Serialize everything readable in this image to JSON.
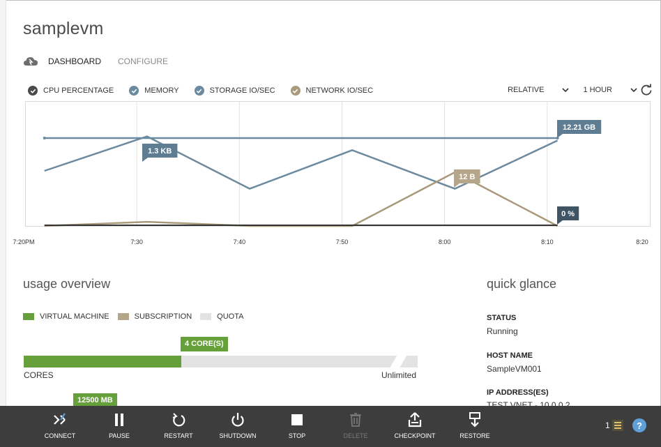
{
  "vm": {
    "name": "samplevm"
  },
  "tabs": [
    {
      "label": "DASHBOARD"
    },
    {
      "label": "CONFIGURE"
    }
  ],
  "metrics": [
    {
      "label": "CPU PERCENTAGE",
      "color": "#4a4a4a"
    },
    {
      "label": "MEMORY",
      "color": "#6b8aa0"
    },
    {
      "label": "STORAGE IO/SEC",
      "color": "#6b8aa0"
    },
    {
      "label": "NETWORK IO/SEC",
      "color": "#a89a7a"
    }
  ],
  "controls": {
    "scale": "RELATIVE",
    "range": "1 HOUR"
  },
  "chart_data": {
    "type": "line",
    "x": [
      "7:20PM",
      "7:30",
      "7:40",
      "7:50",
      "8:00",
      "8:10",
      "8:20"
    ],
    "series": [
      {
        "name": "MEMORY",
        "color": "#6b8aa0",
        "points": [
          [
            "7:21",
            12.21
          ],
          [
            "8:11",
            12.21
          ]
        ],
        "callout": "12.21 GB",
        "level": 0.88
      },
      {
        "name": "STORAGE IO/SEC",
        "color": "#6b8aa0",
        "points": [
          [
            "7:21",
            0.4
          ],
          [
            "7:31",
            0.65
          ],
          [
            "7:41",
            0.27
          ],
          [
            "7:51",
            0.55
          ],
          [
            "8:01",
            0.27
          ],
          [
            "8:11",
            0.62
          ]
        ],
        "callout": "1.3 KB"
      },
      {
        "name": "NETWORK IO/SEC",
        "color": "#a89a7a",
        "points": [
          [
            "7:21",
            0.0
          ],
          [
            "7:31",
            0.03
          ],
          [
            "7:41",
            0.0
          ],
          [
            "7:51",
            0.0
          ],
          [
            "8:01",
            0.39
          ],
          [
            "8:11",
            0.0
          ]
        ],
        "callout": "12 B"
      },
      {
        "name": "CPU PERCENTAGE",
        "color": "#333333",
        "points": [
          [
            "7:21",
            0.0
          ],
          [
            "8:11",
            0.0
          ]
        ],
        "callout": "0 %"
      }
    ],
    "grid": true
  },
  "usage": {
    "title": "usage overview",
    "legend": [
      {
        "label": "VIRTUAL MACHINE",
        "color": "#66a03a"
      },
      {
        "label": "SUBSCRIPTION",
        "color": "#b5a68a"
      },
      {
        "label": "QUOTA",
        "color": "#e3e3e3"
      }
    ],
    "cores": {
      "callout": "4 CORE(S)",
      "label": "CORES",
      "limit": "Unlimited",
      "fraction": 0.4
    },
    "memory": {
      "callout": "12500 MB"
    }
  },
  "quick_glance": {
    "title": "quick glance",
    "status_label": "STATUS",
    "status_value": "Running",
    "host_label": "HOST NAME",
    "host_value": "SampleVM001",
    "ip_label": "IP ADDRESS(ES)",
    "ip_value": "TEST VNET - 10.0.0.2"
  },
  "commands": [
    {
      "label": "CONNECT",
      "icon": "connect-icon"
    },
    {
      "label": "PAUSE",
      "icon": "pause-icon"
    },
    {
      "label": "RESTART",
      "icon": "restart-icon"
    },
    {
      "label": "SHUTDOWN",
      "icon": "power-icon"
    },
    {
      "label": "STOP",
      "icon": "stop-icon"
    },
    {
      "label": "DELETE",
      "icon": "trash-icon"
    },
    {
      "label": "CHECKPOINT",
      "icon": "checkpoint-icon"
    },
    {
      "label": "RESTORE",
      "icon": "restore-icon"
    }
  ],
  "notifications": {
    "count": "1"
  },
  "help": {
    "label": "?"
  }
}
